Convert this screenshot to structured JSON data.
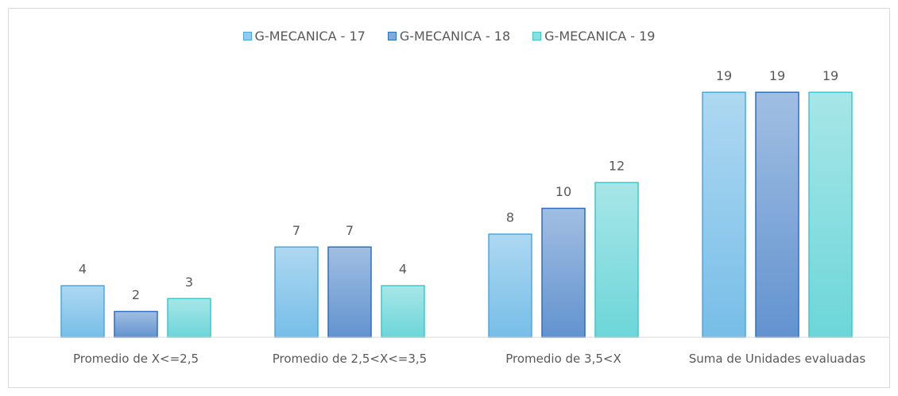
{
  "chart_data": {
    "type": "bar",
    "categories": [
      "Promedio de X<=2,5",
      "Promedio de 2,5<X<=3,5",
      "Promedio de 3,5<X",
      "Suma de Unidades evaluadas"
    ],
    "series": [
      {
        "name": "G-MECANICA - 17",
        "color": "#4aa8e0",
        "values": [
          4,
          7,
          8,
          19
        ]
      },
      {
        "name": "G-MECANICA - 18",
        "color": "#2e6fbf",
        "values": [
          2,
          7,
          10,
          19
        ]
      },
      {
        "name": "G-MECANICA - 19",
        "color": "#3cc8cc",
        "values": [
          3,
          4,
          12,
          19
        ]
      }
    ],
    "ylim": [
      0,
      20
    ],
    "legend": "top"
  }
}
